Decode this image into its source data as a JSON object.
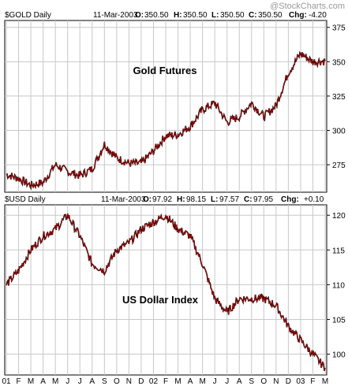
{
  "watermark": "@StockCharts.com",
  "months": [
    "01",
    "F",
    "M",
    "A",
    "M",
    "J",
    "J",
    "A",
    "S",
    "O",
    "N",
    "D",
    "02",
    "F",
    "M",
    "A",
    "M",
    "J",
    "J",
    "A",
    "S",
    "O",
    "N",
    "D",
    "03",
    "F",
    "M"
  ],
  "chart_data": [
    {
      "type": "line",
      "header": {
        "symbol": "$GOLD Daily",
        "date": "11-Mar-2003",
        "o_label": "O:",
        "o_value": "350.50",
        "h_label": "H:",
        "h_value": "350.50",
        "l_label": "L:",
        "l_value": "350.50",
        "c_label": "C:",
        "c_value": "350.50",
        "chg_label": "Chg:",
        "chg_value": "-4.20"
      },
      "annotation": "Gold Futures",
      "ylim": [
        255,
        380
      ],
      "yticks": [
        275,
        300,
        325,
        350,
        375
      ],
      "grid": true,
      "series": [
        {
          "x": [
            "2001-01",
            "2001-02",
            "2001-03",
            "2001-04",
            "2001-05",
            "2001-06",
            "2001-07",
            "2001-08",
            "2001-09",
            "2001-10",
            "2001-11",
            "2001-12",
            "2002-01",
            "2002-02",
            "2002-03",
            "2002-04",
            "2002-05",
            "2002-06",
            "2002-07",
            "2002-08",
            "2002-09",
            "2002-10",
            "2002-11",
            "2002-12",
            "2003-01",
            "2003-02",
            "2003-03"
          ],
          "values": [
            268,
            265,
            260,
            262,
            275,
            270,
            267,
            272,
            290,
            280,
            276,
            276,
            285,
            296,
            297,
            303,
            315,
            320,
            306,
            310,
            320,
            310,
            318,
            342,
            356,
            350,
            350.5
          ]
        }
      ]
    },
    {
      "type": "line",
      "header": {
        "symbol": "$USD Daily",
        "date": "11-Mar-2003",
        "o_label": "O:",
        "o_value": "97.92",
        "h_label": "H:",
        "h_value": "98.15",
        "l_label": "L:",
        "l_value": "97.57",
        "c_label": "C:",
        "c_value": "97.95",
        "chg_label": "Chg:",
        "chg_value": "+0.10"
      },
      "annotation": "US Dollar Index",
      "ylim": [
        97,
        121.5
      ],
      "yticks": [
        100,
        105,
        110,
        115,
        120
      ],
      "grid": true,
      "series": [
        {
          "x": [
            "2001-01",
            "2001-02",
            "2001-03",
            "2001-04",
            "2001-05",
            "2001-06",
            "2001-07",
            "2001-08",
            "2001-09",
            "2001-10",
            "2001-11",
            "2001-12",
            "2002-01",
            "2002-02",
            "2002-03",
            "2002-04",
            "2002-05",
            "2002-06",
            "2002-07",
            "2002-08",
            "2002-09",
            "2002-10",
            "2002-11",
            "2002-12",
            "2003-01",
            "2003-02",
            "2003-03"
          ],
          "values": [
            110,
            112,
            115,
            117,
            118,
            120,
            117,
            113,
            112,
            115,
            116,
            118,
            119,
            120,
            118,
            117,
            113,
            108,
            106,
            108,
            108,
            108,
            107,
            104,
            102,
            100,
            98
          ]
        }
      ]
    }
  ]
}
